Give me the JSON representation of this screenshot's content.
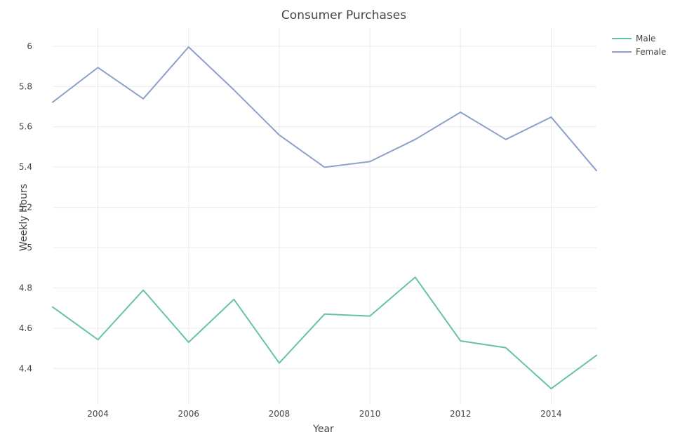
{
  "chart_data": {
    "type": "line",
    "title": "Consumer Purchases",
    "xlabel": "Year",
    "ylabel": "Weekly Hours",
    "x": [
      2003,
      2004,
      2005,
      2006,
      2007,
      2008,
      2009,
      2010,
      2011,
      2012,
      2013,
      2014,
      2015
    ],
    "xlim": [
      2003,
      2015
    ],
    "ylim": [
      4.22,
      6.09
    ],
    "x_ticks": [
      2004,
      2006,
      2008,
      2010,
      2012,
      2014
    ],
    "y_ticks": [
      4.4,
      4.6,
      4.8,
      5,
      5.2,
      5.4,
      5.6,
      5.8,
      6
    ],
    "x_tick_labels": [
      "2004",
      "2006",
      "2008",
      "2010",
      "2012",
      "2014"
    ],
    "y_tick_labels": [
      "4.4",
      "4.6",
      "4.8",
      "5",
      "5.2",
      "5.4",
      "5.6",
      "5.8",
      "6"
    ],
    "grid": true,
    "legend_position": "top-right",
    "series": [
      {
        "name": "Male",
        "color": "#66c2a5",
        "values": [
          4.705,
          4.543,
          4.789,
          4.53,
          4.743,
          4.427,
          4.67,
          4.66,
          4.853,
          4.537,
          4.503,
          4.3,
          4.465
        ]
      },
      {
        "name": "Female",
        "color": "#8da0cb",
        "values": [
          5.722,
          5.894,
          5.739,
          5.996,
          5.783,
          5.559,
          5.399,
          5.427,
          5.537,
          5.672,
          5.537,
          5.648,
          5.382
        ]
      }
    ]
  }
}
